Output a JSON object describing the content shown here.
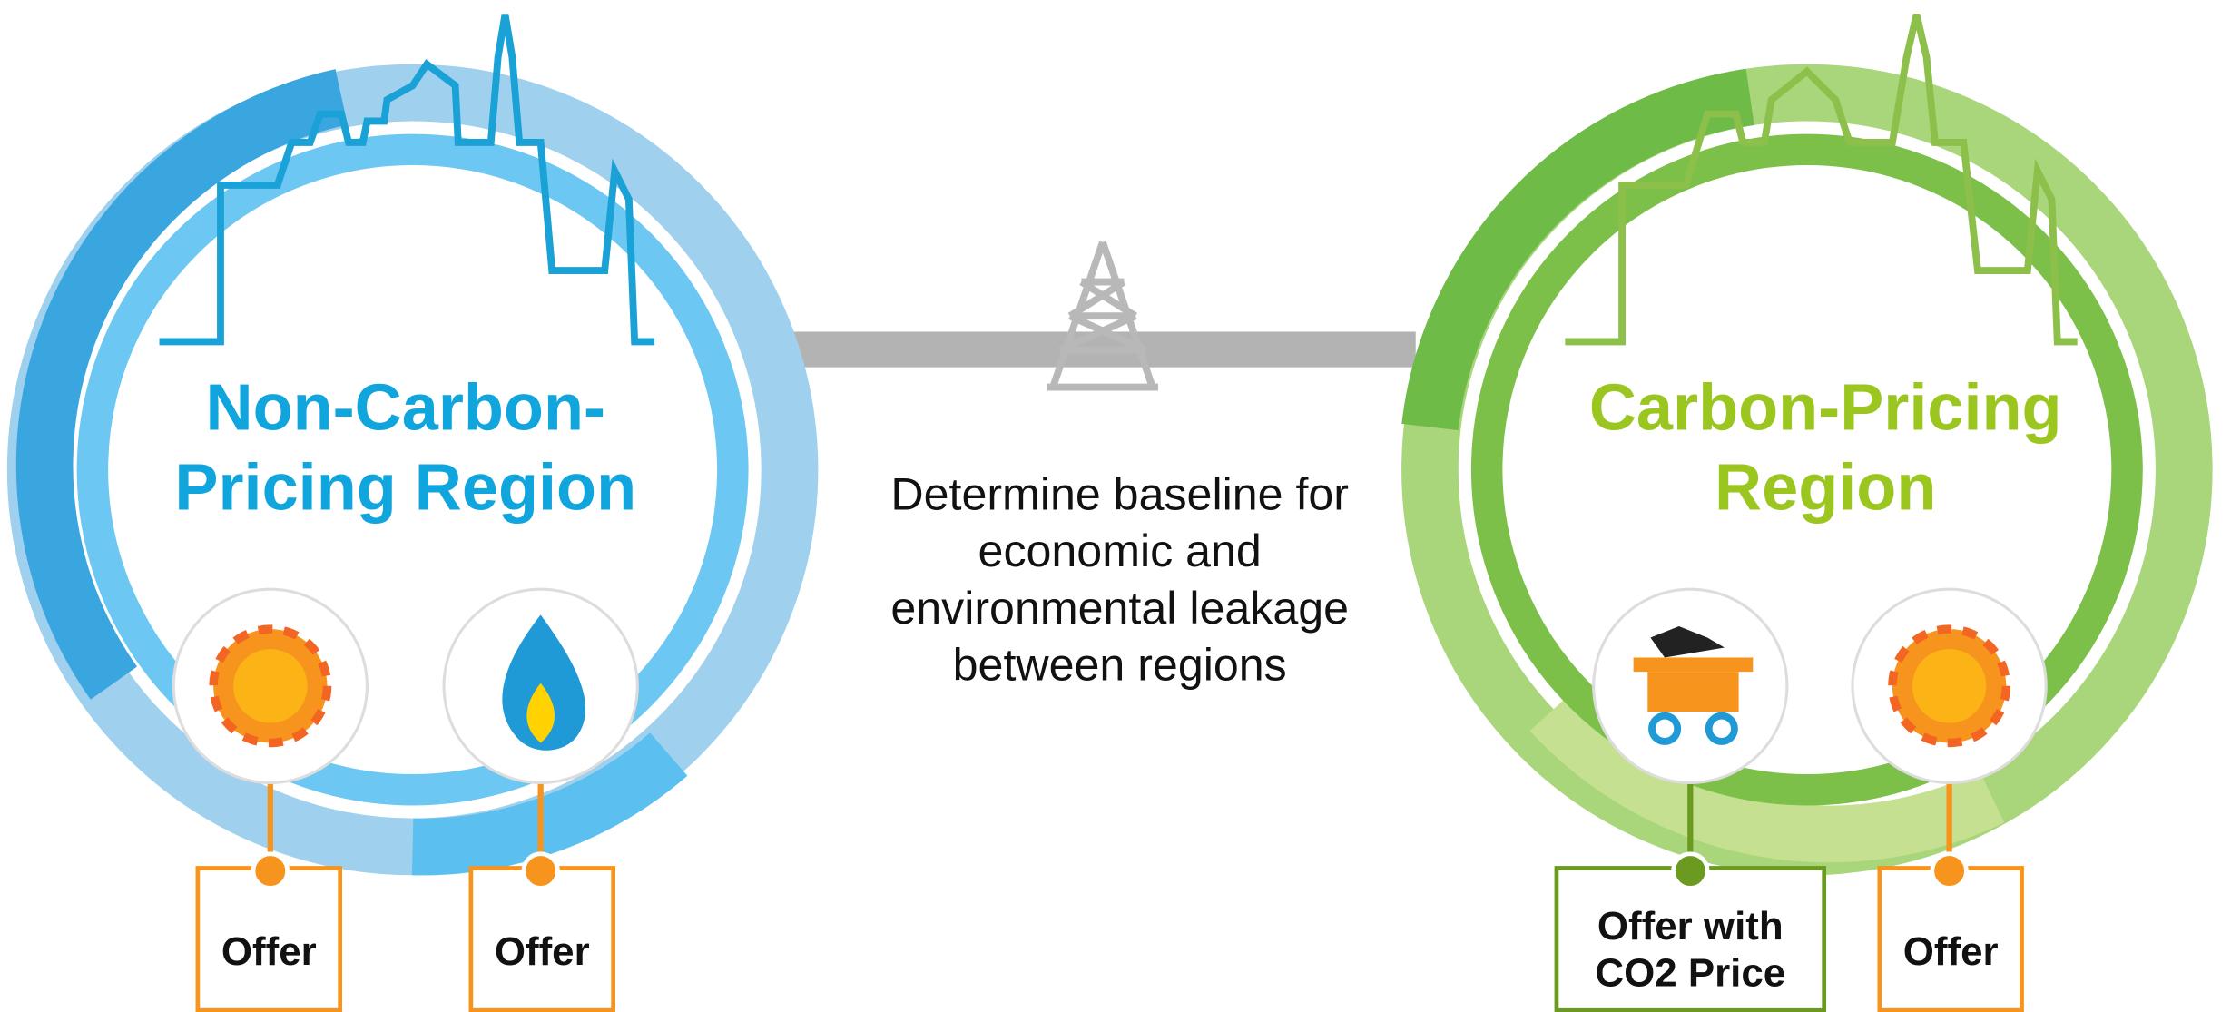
{
  "center_text": {
    "lines": [
      "Determine baseline for",
      "economic and",
      "environmental leakage",
      "between regions"
    ]
  },
  "left_region": {
    "title_lines": [
      "Non-Carbon-",
      "Pricing Region"
    ],
    "offers": [
      {
        "lines": [
          "Offer"
        ]
      },
      {
        "lines": [
          "Offer"
        ]
      }
    ]
  },
  "right_region": {
    "title_lines": [
      "Carbon-Pricing",
      "Region"
    ],
    "offers": [
      {
        "lines": [
          "Offer with",
          "CO2 Price"
        ]
      },
      {
        "lines": [
          "Offer"
        ]
      }
    ]
  }
}
